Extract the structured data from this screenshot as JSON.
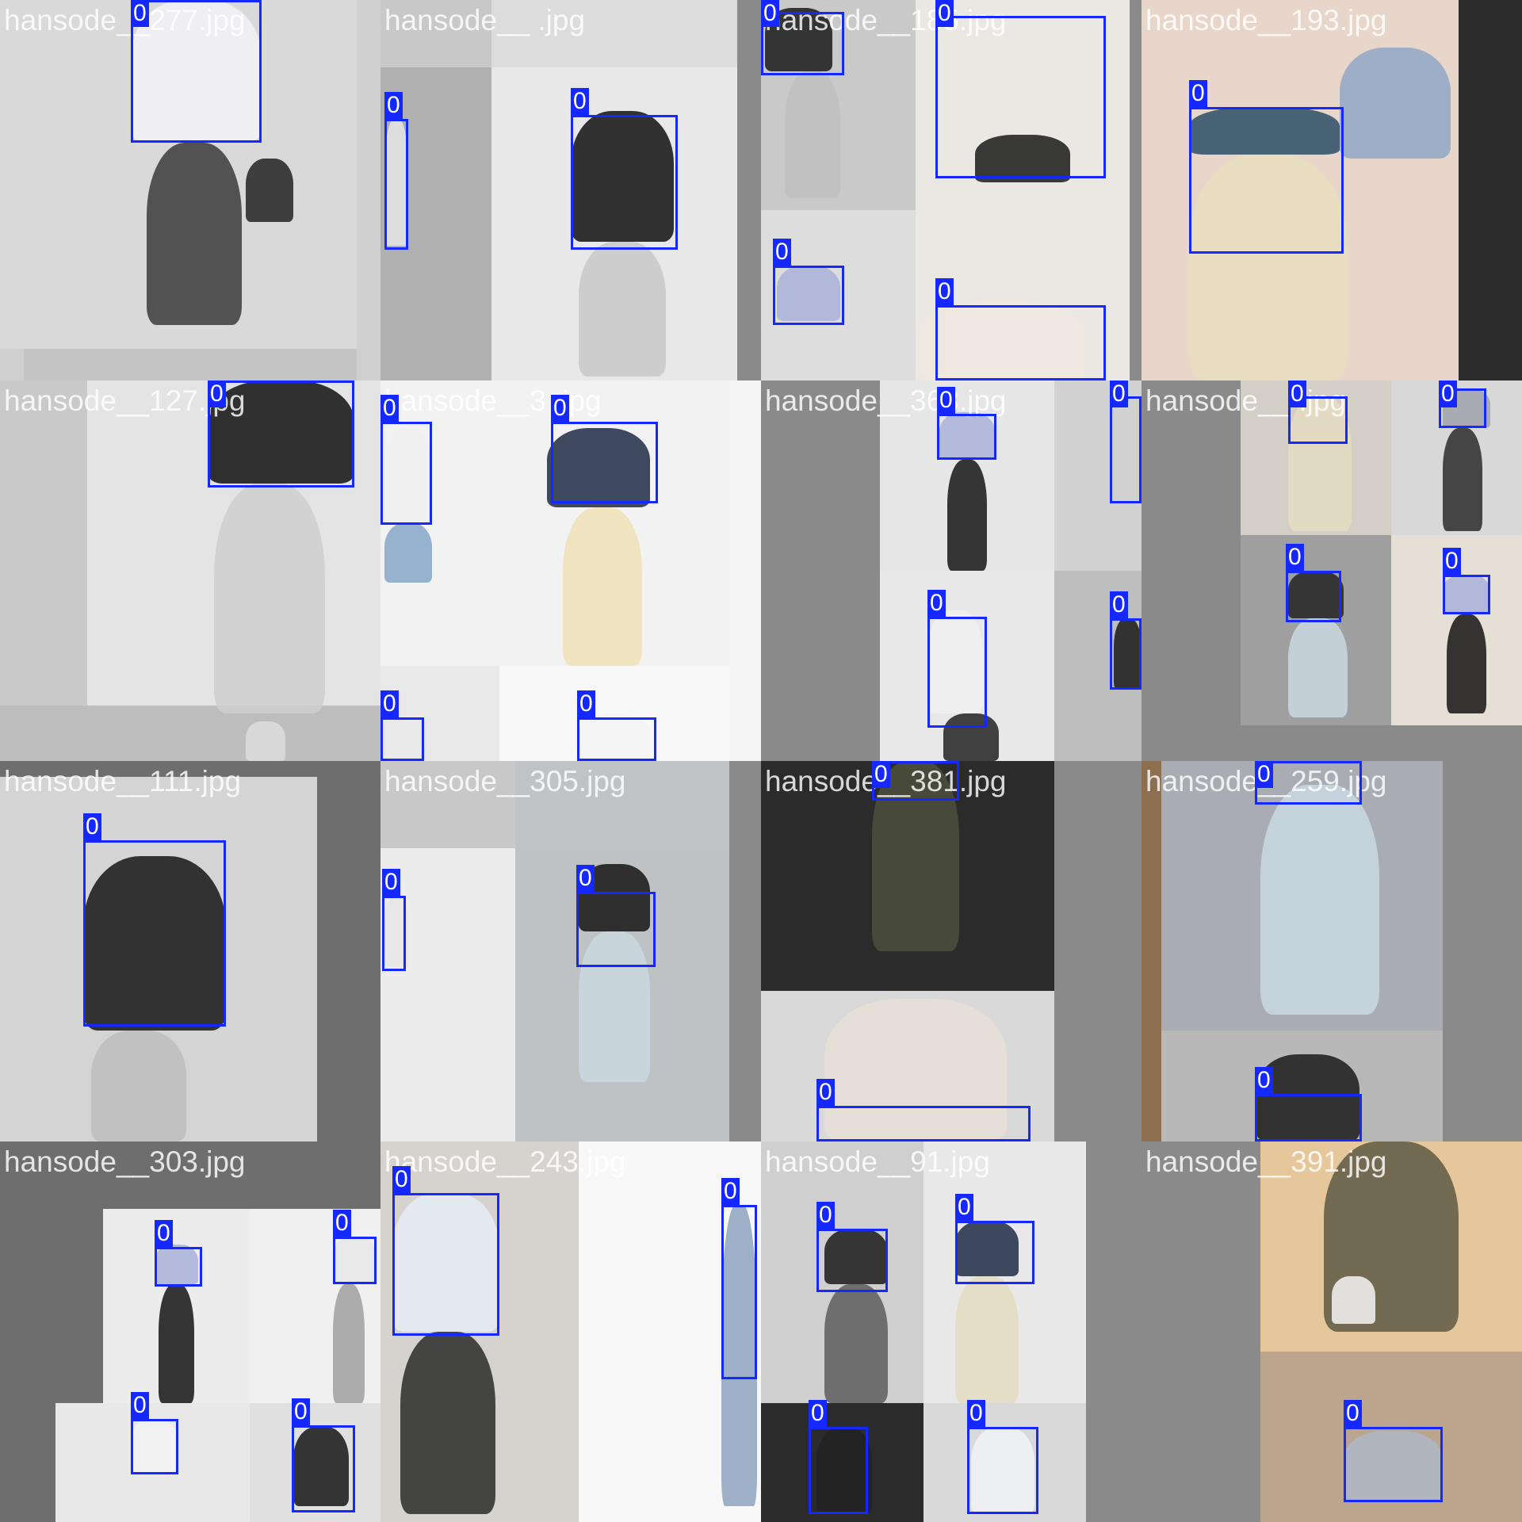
{
  "colors": {
    "box": "#1428ff",
    "label_text": "#ffffff",
    "fill": "#7a7a7a"
  },
  "tiles": [
    {
      "label": "hansode__277.jpg",
      "bg": "#cfcfcf",
      "panels": [
        [
          "#d9d9d9",
          0,
          0,
          450,
          440
        ],
        [
          "#c4c4c4",
          30,
          440,
          420,
          40
        ]
      ],
      "figs": [
        [
          "#f2f2f7",
          165,
          0,
          165,
          180
        ],
        [
          "#3a3a3a",
          185,
          180,
          120,
          230
        ],
        [
          "#222",
          310,
          200,
          60,
          80
        ]
      ],
      "boxes": [
        {
          "cls": "0"
        }
      ]
    },
    {
      "label": "hansode__   .jpg",
      "bg": "#8a8a8a",
      "panels": [
        [
          "#c8c8c8",
          0,
          0,
          140,
          85
        ],
        [
          "#dcdcdc",
          140,
          0,
          310,
          85
        ],
        [
          "#b0b0b0",
          0,
          85,
          140,
          395
        ],
        [
          "#e8e8e8",
          140,
          85,
          310,
          395
        ]
      ],
      "figs": [
        [
          "#111",
          240,
          140,
          130,
          165
        ],
        [
          "#c8c8c8",
          250,
          305,
          110,
          170
        ],
        [
          "#e6e6e6",
          5,
          150,
          30,
          160
        ]
      ],
      "boxes": [
        {
          "cls": "0"
        },
        {
          "cls": "0"
        }
      ]
    },
    {
      "label": "hansode__185.jpg",
      "bg": "#8a8a8a",
      "panels": [
        [
          "#c9c9c9",
          0,
          0,
          195,
          265
        ],
        [
          "#ebe7e3",
          195,
          0,
          270,
          480
        ],
        [
          "#ddd",
          0,
          265,
          195,
          215
        ]
      ],
      "figs": [
        [
          "#1a1a1a",
          5,
          10,
          85,
          80
        ],
        [
          "#bfbfbf",
          30,
          90,
          70,
          160
        ],
        [
          "#eae7e2",
          210,
          30,
          200,
          190
        ],
        [
          "#1a1a1a",
          270,
          170,
          120,
          60
        ],
        [
          "#efe8e0",
          200,
          380,
          210,
          100
        ],
        [
          "#a9b2d9",
          20,
          335,
          80,
          70
        ]
      ],
      "boxes": [
        {
          "cls": "0"
        },
        {
          "cls": "0"
        },
        {
          "cls": "0"
        },
        {
          "cls": "0"
        }
      ]
    },
    {
      "label": "hansode__193.jpg",
      "bg": "#333",
      "panels": [
        [
          "#e7d6c9",
          0,
          0,
          400,
          480
        ],
        [
          "#2c2c2c",
          400,
          0,
          80,
          480
        ]
      ],
      "figs": [
        [
          "#2b4f66",
          60,
          135,
          190,
          60
        ],
        [
          "#e8ddc0",
          60,
          195,
          200,
          285
        ],
        [
          "#8fa7c6",
          250,
          60,
          140,
          140
        ]
      ],
      "boxes": [
        {
          "cls": "0"
        }
      ]
    },
    {
      "label": "hansode__127.jpg",
      "bg": "#dcdcdc",
      "panels": [
        [
          "#c9c9c9",
          0,
          0,
          110,
          480
        ],
        [
          "#e4e4e4",
          110,
          0,
          370,
          410
        ],
        [
          "#bdbdbd",
          0,
          410,
          480,
          70
        ]
      ],
      "figs": [
        [
          "#111",
          262,
          0,
          185,
          130
        ],
        [
          "#cfcfcf",
          270,
          130,
          140,
          290
        ],
        [
          "#ddd",
          310,
          430,
          50,
          50
        ]
      ],
      "boxes": [
        {
          "cls": "0"
        }
      ]
    },
    {
      "label": "hansode__3  .jpg",
      "bg": "#f5f5f5",
      "panels": [
        [
          "#f2f2f2",
          0,
          0,
          440,
          360
        ],
        [
          "#e9e9e9",
          0,
          360,
          150,
          120
        ],
        [
          "#f8f8f8",
          150,
          360,
          290,
          120
        ]
      ],
      "figs": [
        [
          "#f0f0f0",
          5,
          60,
          60,
          120
        ],
        [
          "#86a7c8",
          5,
          180,
          60,
          75
        ],
        [
          "#1f2a44",
          210,
          60,
          130,
          100
        ],
        [
          "#efe2b6",
          230,
          160,
          100,
          200
        ],
        [
          "#f5f5f5",
          250,
          420,
          90,
          60
        ]
      ],
      "boxes": [
        {
          "cls": "0"
        },
        {
          "cls": "0"
        },
        {
          "cls": "0"
        },
        {
          "cls": "0"
        }
      ]
    },
    {
      "label": "hansode__368.jpg",
      "bg": "#8a8a8a",
      "panels": [
        [
          "#e6e6e6",
          150,
          0,
          220,
          240
        ],
        [
          "#d2d2d2",
          370,
          0,
          110,
          240
        ],
        [
          "#e8e8e8",
          150,
          240,
          220,
          240
        ],
        [
          "#bdbdbd",
          370,
          240,
          110,
          240
        ]
      ],
      "figs": [
        [
          "#a9b2d9",
          225,
          40,
          70,
          60
        ],
        [
          "#151515",
          235,
          100,
          50,
          140
        ],
        [
          "#f0f0f0",
          210,
          290,
          70,
          130
        ],
        [
          "#222",
          230,
          420,
          70,
          60
        ],
        [
          "#1a1a1a",
          445,
          300,
          35,
          90
        ]
      ],
      "boxes": [
        {
          "cls": "0"
        },
        {
          "cls": "0"
        },
        {
          "cls": "0"
        },
        {
          "cls": "0"
        }
      ]
    },
    {
      "label": "hansode__   .jpg",
      "bg": "#8a8a8a",
      "panels": [
        [
          "#d4cfc6",
          125,
          0,
          190,
          195
        ],
        [
          "#d8d8d8",
          315,
          0,
          165,
          195
        ],
        [
          "#9f9f9f",
          125,
          195,
          190,
          240
        ],
        [
          "#e5dfd6",
          315,
          195,
          165,
          240
        ]
      ],
      "figs": [
        [
          "#e4dcc0",
          185,
          20,
          80,
          170
        ],
        [
          "#a0a3ad",
          380,
          10,
          60,
          50
        ],
        [
          "#2b2b2b",
          380,
          60,
          50,
          130
        ],
        [
          "#222",
          185,
          240,
          70,
          60
        ],
        [
          "#c9d8e2",
          185,
          300,
          75,
          125
        ],
        [
          "#a9b2d9",
          380,
          245,
          60,
          50
        ],
        [
          "#151515",
          385,
          295,
          50,
          125
        ]
      ],
      "boxes": [
        {
          "cls": "0"
        },
        {
          "cls": "0"
        },
        {
          "cls": "0"
        },
        {
          "cls": "0"
        }
      ]
    },
    {
      "label": "hansode__111.jpg",
      "bg": "#6e6e6e",
      "panels": [
        [
          "#d4d4d4",
          0,
          20,
          400,
          460
        ]
      ],
      "figs": [
        [
          "#151515",
          105,
          120,
          180,
          220
        ],
        [
          "#bdbdbd",
          115,
          340,
          120,
          140
        ]
      ],
      "boxes": [
        {
          "cls": "0"
        }
      ]
    },
    {
      "label": "hansode__305.jpg",
      "bg": "#8a8a8a",
      "panels": [
        [
          "#c8c8c8",
          0,
          0,
          170,
          110
        ],
        [
          "#c0c3c6",
          170,
          0,
          270,
          110
        ],
        [
          "#ececec",
          0,
          110,
          170,
          370
        ],
        [
          "#bfc2c4",
          170,
          110,
          270,
          370
        ]
      ],
      "figs": [
        [
          "#151515",
          250,
          130,
          90,
          85
        ],
        [
          "#c9d8e2",
          250,
          215,
          90,
          190
        ],
        [
          "#e7e7e7",
          5,
          170,
          30,
          90
        ]
      ],
      "boxes": [
        {
          "cls": "0"
        },
        {
          "cls": "0"
        }
      ]
    },
    {
      "label": "hansode__381.jpg",
      "bg": "#8a8a8a",
      "panels": [
        [
          "#2b2b2b",
          0,
          0,
          370,
          290
        ],
        [
          "#d9d9d9",
          0,
          290,
          370,
          190
        ]
      ],
      "figs": [
        [
          "#4c4f3d",
          140,
          0,
          110,
          240
        ],
        [
          "#e8dfd7",
          80,
          300,
          230,
          180
        ]
      ],
      "boxes": [
        {
          "cls": "0"
        },
        {
          "cls": "0"
        }
      ]
    },
    {
      "label": "hansode__259.jpg",
      "bg": "#8a8a8a",
      "panels": [
        [
          "#8d6e4e",
          0,
          0,
          25,
          480
        ],
        [
          "#a9adb3",
          25,
          0,
          355,
          340
        ],
        [
          "#b8b8b8",
          25,
          340,
          355,
          140
        ]
      ],
      "figs": [
        [
          "#c9d8e2",
          150,
          30,
          150,
          290
        ],
        [
          "#1a1a1a",
          145,
          370,
          130,
          110
        ]
      ],
      "boxes": [
        {
          "cls": "0"
        },
        {
          "cls": "0"
        }
      ]
    },
    {
      "label": "hansode__303.jpg",
      "bg": "#6e6e6e",
      "panels": [
        [
          "#ececec",
          130,
          85,
          185,
          245
        ],
        [
          "#f0f0f0",
          315,
          85,
          165,
          245
        ],
        [
          "#e8e8e8",
          70,
          330,
          245,
          150
        ],
        [
          "#e0e0e0",
          315,
          330,
          165,
          150
        ]
      ],
      "figs": [
        [
          "#a9b2d9",
          195,
          130,
          55,
          50
        ],
        [
          "#151515",
          200,
          180,
          45,
          150
        ],
        [
          "#e8e8e8",
          420,
          120,
          55,
          60
        ],
        [
          "#a0a0a0",
          420,
          180,
          40,
          150
        ],
        [
          "#f2f2f2",
          165,
          350,
          60,
          70
        ],
        [
          "#151515",
          370,
          360,
          70,
          100
        ]
      ],
      "boxes": [
        {
          "cls": "0"
        },
        {
          "cls": "0"
        },
        {
          "cls": "0"
        },
        {
          "cls": "0"
        }
      ]
    },
    {
      "label": "hansode__243.jpg",
      "bg": "#f2f2f2",
      "panels": [
        [
          "#d6d3cf",
          0,
          0,
          250,
          480
        ],
        [
          "#f8f8f8",
          250,
          0,
          230,
          480
        ]
      ],
      "figs": [
        [
          "#e6ecf7",
          15,
          65,
          135,
          175
        ],
        [
          "#2a2a2a",
          25,
          240,
          120,
          230
        ],
        [
          "#8ea3bf",
          430,
          80,
          45,
          380
        ]
      ],
      "boxes": [
        {
          "cls": "0"
        },
        {
          "cls": "0"
        }
      ]
    },
    {
      "label": "hansode__91.jpg",
      "bg": "#8a8a8a",
      "panels": [
        [
          "#cfcfcf",
          0,
          0,
          205,
          330
        ],
        [
          "#e8e8e8",
          205,
          0,
          205,
          330
        ],
        [
          "#2b2b2b",
          0,
          330,
          205,
          150
        ],
        [
          "#d9d9d9",
          205,
          330,
          205,
          150
        ]
      ],
      "figs": [
        [
          "#1a1a1a",
          80,
          110,
          80,
          70
        ],
        [
          "#5d5d5d",
          80,
          180,
          80,
          150
        ],
        [
          "#1f2a44",
          245,
          100,
          80,
          70
        ],
        [
          "#e4dcc0",
          245,
          170,
          80,
          160
        ],
        [
          "#222",
          70,
          360,
          70,
          110
        ],
        [
          "#f0f2f7",
          265,
          360,
          80,
          110
        ]
      ],
      "boxes": [
        {
          "cls": "0"
        },
        {
          "cls": "0"
        },
        {
          "cls": "0"
        },
        {
          "cls": "0"
        }
      ]
    },
    {
      "label": "hansode__391.jpg",
      "bg": "#8a8a8a",
      "panels": [
        [
          "#e6c79b",
          150,
          0,
          330,
          265
        ],
        [
          "#bba58d",
          150,
          265,
          330,
          215
        ]
      ],
      "figs": [
        [
          "#5d5b45",
          230,
          0,
          170,
          240
        ],
        [
          "#f5f5f5",
          240,
          170,
          55,
          60
        ],
        [
          "#aeb7c6",
          255,
          365,
          125,
          90
        ]
      ],
      "boxes": [
        {
          "cls": "0"
        },
        {
          "cls": "0"
        }
      ]
    }
  ]
}
